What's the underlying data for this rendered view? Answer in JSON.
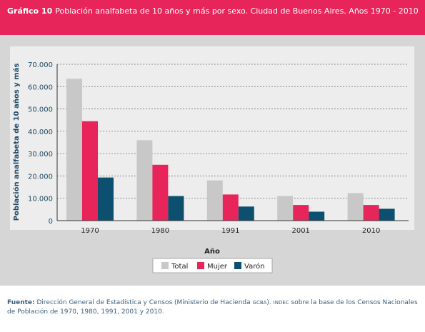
{
  "header": {
    "label": "Gráfico 10",
    "title": "Población analfabeta de 10 años y más por sexo. Ciudad de Buenos Aires. Años 1970 - 2010"
  },
  "colors": {
    "header_bg": "#e8255a",
    "total": "#c8c8c8",
    "mujer": "#e8255a",
    "varon": "#0d4f6e",
    "axis_text": "#1f4a66"
  },
  "chart_data": {
    "type": "bar",
    "categories": [
      "1970",
      "1980",
      "1991",
      "2001",
      "2010"
    ],
    "series": [
      {
        "name": "Total",
        "values": [
          63500,
          36000,
          18000,
          11000,
          12300
        ]
      },
      {
        "name": "Mujer",
        "values": [
          44500,
          25000,
          11700,
          7000,
          7000
        ]
      },
      {
        "name": "Varón",
        "values": [
          19300,
          11000,
          6300,
          4000,
          5300
        ]
      }
    ],
    "xlabel": "Año",
    "ylabel": "Población analfabeta de 10 años y más",
    "ylim": [
      0,
      70000
    ],
    "yticks": [
      "0",
      "10.000",
      "20.000",
      "30.000",
      "40.000",
      "50.000",
      "60.000",
      "70.000"
    ],
    "ytick_values": [
      0,
      10000,
      20000,
      30000,
      40000,
      50000,
      60000,
      70000
    ],
    "grid": true,
    "legend_position": "bottom"
  },
  "source": {
    "label": "Fuente:",
    "text_before": "Dirección General de Estadística y Censos (Ministerio de Hacienda",
    "gcba": "gcba",
    "indec": "indec",
    "text_after": "sobre la base de los Censos Nacionales de Población de 1970, 1980, 1991, 2001 y 2010."
  }
}
